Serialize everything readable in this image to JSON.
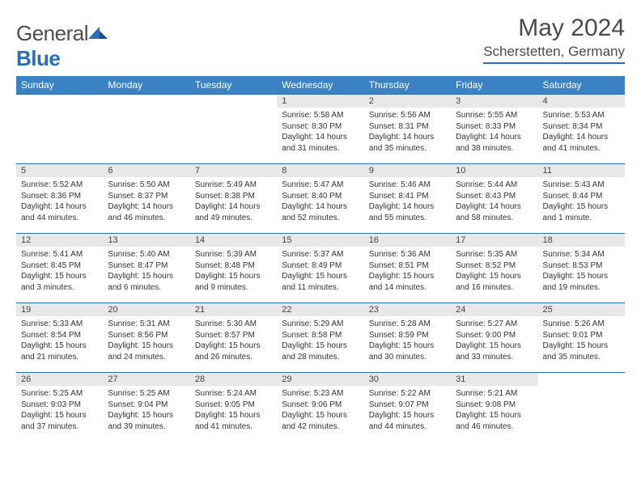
{
  "logo": {
    "text1": "General",
    "text2": "Blue"
  },
  "title": "May 2024",
  "location": "Scherstetten, Germany",
  "dayHeaders": [
    "Sunday",
    "Monday",
    "Tuesday",
    "Wednesday",
    "Thursday",
    "Friday",
    "Saturday"
  ],
  "colors": {
    "headerBg": "#3a82c4",
    "accent": "#2a6fb5",
    "dayRowBg": "#e8e8e8",
    "text": "#333333",
    "bodyBg": "#ffffff"
  },
  "weeks": [
    [
      null,
      null,
      null,
      {
        "n": "1",
        "sunrise": "5:58 AM",
        "sunset": "8:30 PM",
        "day1": "Daylight: 14 hours",
        "day2": "and 31 minutes."
      },
      {
        "n": "2",
        "sunrise": "5:56 AM",
        "sunset": "8:31 PM",
        "day1": "Daylight: 14 hours",
        "day2": "and 35 minutes."
      },
      {
        "n": "3",
        "sunrise": "5:55 AM",
        "sunset": "8:33 PM",
        "day1": "Daylight: 14 hours",
        "day2": "and 38 minutes."
      },
      {
        "n": "4",
        "sunrise": "5:53 AM",
        "sunset": "8:34 PM",
        "day1": "Daylight: 14 hours",
        "day2": "and 41 minutes."
      }
    ],
    [
      {
        "n": "5",
        "sunrise": "5:52 AM",
        "sunset": "8:36 PM",
        "day1": "Daylight: 14 hours",
        "day2": "and 44 minutes."
      },
      {
        "n": "6",
        "sunrise": "5:50 AM",
        "sunset": "8:37 PM",
        "day1": "Daylight: 14 hours",
        "day2": "and 46 minutes."
      },
      {
        "n": "7",
        "sunrise": "5:49 AM",
        "sunset": "8:38 PM",
        "day1": "Daylight: 14 hours",
        "day2": "and 49 minutes."
      },
      {
        "n": "8",
        "sunrise": "5:47 AM",
        "sunset": "8:40 PM",
        "day1": "Daylight: 14 hours",
        "day2": "and 52 minutes."
      },
      {
        "n": "9",
        "sunrise": "5:46 AM",
        "sunset": "8:41 PM",
        "day1": "Daylight: 14 hours",
        "day2": "and 55 minutes."
      },
      {
        "n": "10",
        "sunrise": "5:44 AM",
        "sunset": "8:43 PM",
        "day1": "Daylight: 14 hours",
        "day2": "and 58 minutes."
      },
      {
        "n": "11",
        "sunrise": "5:43 AM",
        "sunset": "8:44 PM",
        "day1": "Daylight: 15 hours",
        "day2": "and 1 minute."
      }
    ],
    [
      {
        "n": "12",
        "sunrise": "5:41 AM",
        "sunset": "8:45 PM",
        "day1": "Daylight: 15 hours",
        "day2": "and 3 minutes."
      },
      {
        "n": "13",
        "sunrise": "5:40 AM",
        "sunset": "8:47 PM",
        "day1": "Daylight: 15 hours",
        "day2": "and 6 minutes."
      },
      {
        "n": "14",
        "sunrise": "5:39 AM",
        "sunset": "8:48 PM",
        "day1": "Daylight: 15 hours",
        "day2": "and 9 minutes."
      },
      {
        "n": "15",
        "sunrise": "5:37 AM",
        "sunset": "8:49 PM",
        "day1": "Daylight: 15 hours",
        "day2": "and 11 minutes."
      },
      {
        "n": "16",
        "sunrise": "5:36 AM",
        "sunset": "8:51 PM",
        "day1": "Daylight: 15 hours",
        "day2": "and 14 minutes."
      },
      {
        "n": "17",
        "sunrise": "5:35 AM",
        "sunset": "8:52 PM",
        "day1": "Daylight: 15 hours",
        "day2": "and 16 minutes."
      },
      {
        "n": "18",
        "sunrise": "5:34 AM",
        "sunset": "8:53 PM",
        "day1": "Daylight: 15 hours",
        "day2": "and 19 minutes."
      }
    ],
    [
      {
        "n": "19",
        "sunrise": "5:33 AM",
        "sunset": "8:54 PM",
        "day1": "Daylight: 15 hours",
        "day2": "and 21 minutes."
      },
      {
        "n": "20",
        "sunrise": "5:31 AM",
        "sunset": "8:56 PM",
        "day1": "Daylight: 15 hours",
        "day2": "and 24 minutes."
      },
      {
        "n": "21",
        "sunrise": "5:30 AM",
        "sunset": "8:57 PM",
        "day1": "Daylight: 15 hours",
        "day2": "and 26 minutes."
      },
      {
        "n": "22",
        "sunrise": "5:29 AM",
        "sunset": "8:58 PM",
        "day1": "Daylight: 15 hours",
        "day2": "and 28 minutes."
      },
      {
        "n": "23",
        "sunrise": "5:28 AM",
        "sunset": "8:59 PM",
        "day1": "Daylight: 15 hours",
        "day2": "and 30 minutes."
      },
      {
        "n": "24",
        "sunrise": "5:27 AM",
        "sunset": "9:00 PM",
        "day1": "Daylight: 15 hours",
        "day2": "and 33 minutes."
      },
      {
        "n": "25",
        "sunrise": "5:26 AM",
        "sunset": "9:01 PM",
        "day1": "Daylight: 15 hours",
        "day2": "and 35 minutes."
      }
    ],
    [
      {
        "n": "26",
        "sunrise": "5:25 AM",
        "sunset": "9:03 PM",
        "day1": "Daylight: 15 hours",
        "day2": "and 37 minutes."
      },
      {
        "n": "27",
        "sunrise": "5:25 AM",
        "sunset": "9:04 PM",
        "day1": "Daylight: 15 hours",
        "day2": "and 39 minutes."
      },
      {
        "n": "28",
        "sunrise": "5:24 AM",
        "sunset": "9:05 PM",
        "day1": "Daylight: 15 hours",
        "day2": "and 41 minutes."
      },
      {
        "n": "29",
        "sunrise": "5:23 AM",
        "sunset": "9:06 PM",
        "day1": "Daylight: 15 hours",
        "day2": "and 42 minutes."
      },
      {
        "n": "30",
        "sunrise": "5:22 AM",
        "sunset": "9:07 PM",
        "day1": "Daylight: 15 hours",
        "day2": "and 44 minutes."
      },
      {
        "n": "31",
        "sunrise": "5:21 AM",
        "sunset": "9:08 PM",
        "day1": "Daylight: 15 hours",
        "day2": "and 46 minutes."
      },
      null
    ]
  ],
  "labels": {
    "sunrise": "Sunrise: ",
    "sunset": "Sunset: "
  }
}
